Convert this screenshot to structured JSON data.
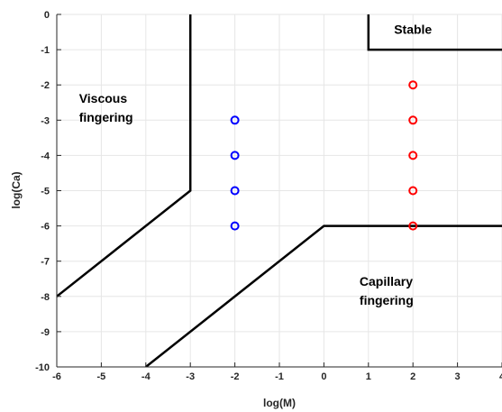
{
  "chart_data": {
    "type": "scatter",
    "xlabel": "log(M)",
    "ylabel": "log(Ca)",
    "xlim": [
      -6,
      4
    ],
    "ylim": [
      -10,
      0
    ],
    "x_ticks": [
      "-6",
      "-5",
      "-4",
      "-3",
      "-2",
      "-1",
      "0",
      "1",
      "2",
      "3",
      "4"
    ],
    "y_ticks": [
      "0",
      "-1",
      "-2",
      "-3",
      "-4",
      "-5",
      "-6",
      "-7",
      "-8",
      "-9",
      "-10"
    ],
    "grid": true,
    "grid_color": "#e6e6e6",
    "axis_color": "#262626",
    "boundaries": [
      {
        "id": "viscous-boundary",
        "color": "#000000",
        "points": [
          [
            -6,
            -8
          ],
          [
            -3,
            -5
          ],
          [
            -3,
            0
          ]
        ]
      },
      {
        "id": "capillary-boundary",
        "color": "#000000",
        "points": [
          [
            -4,
            -10
          ],
          [
            0,
            -6
          ],
          [
            4,
            -6
          ]
        ]
      },
      {
        "id": "stable-boundary",
        "color": "#000000",
        "points": [
          [
            1,
            0
          ],
          [
            1,
            -1
          ],
          [
            4,
            -1
          ]
        ]
      }
    ],
    "series": [
      {
        "color": "#0000ff",
        "marker": "circle-open",
        "points": [
          [
            -2,
            -3
          ],
          [
            -2,
            -4
          ],
          [
            -2,
            -5
          ],
          [
            -2,
            -6
          ]
        ]
      },
      {
        "color": "#ff0000",
        "marker": "circle-open",
        "points": [
          [
            2,
            -2
          ],
          [
            2,
            -3
          ],
          [
            2,
            -4
          ],
          [
            2,
            -5
          ],
          [
            2,
            -6
          ]
        ]
      }
    ],
    "annotations": [
      {
        "id": "viscous",
        "lines": [
          "Viscous",
          "fingering"
        ],
        "x": -5.5,
        "y": -2.5
      },
      {
        "id": "capillary",
        "lines": [
          "Capillary",
          "fingering"
        ],
        "x": 0.8,
        "y": -7.7
      },
      {
        "id": "stable",
        "lines": [
          "Stable"
        ],
        "x": 2.0,
        "y": -0.55
      }
    ]
  }
}
